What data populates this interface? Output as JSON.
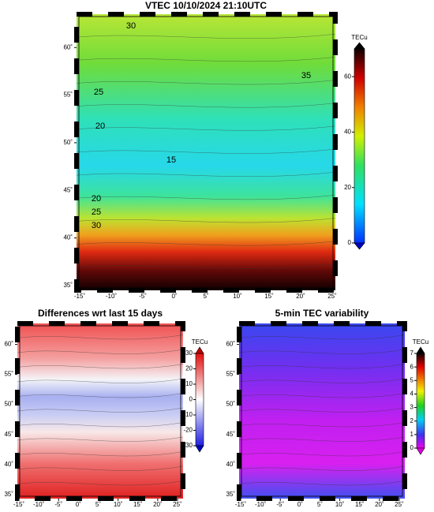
{
  "maps": [
    {
      "title": "VTEC 10/10/2024 21:10UTC",
      "xlim": [
        -15.5,
        25.5
      ],
      "ylim": [
        34.5,
        63.5
      ],
      "xticks": [
        {
          "value": -15,
          "label": "-15˚"
        },
        {
          "value": -10,
          "label": "-10˚"
        },
        {
          "value": -5,
          "label": "-5˚"
        },
        {
          "value": 0,
          "label": "0˚"
        },
        {
          "value": 5,
          "label": "5˚"
        },
        {
          "value": 10,
          "label": "10˚"
        },
        {
          "value": 15,
          "label": "15˚"
        },
        {
          "value": 20,
          "label": "20˚"
        },
        {
          "value": 25,
          "label": "25˚"
        }
      ],
      "yticks": [
        {
          "value": 35,
          "label": "35˚"
        },
        {
          "value": 40,
          "label": "40˚"
        },
        {
          "value": 45,
          "label": "45˚"
        },
        {
          "value": 50,
          "label": "50˚"
        },
        {
          "value": 55,
          "label": "55˚"
        },
        {
          "value": 60,
          "label": "60˚"
        }
      ],
      "colorbar": {
        "label": "TECu",
        "lim": [
          0,
          70
        ],
        "ticks": [
          0,
          20,
          40,
          60
        ]
      },
      "contour_labels": [
        30,
        25,
        20,
        15,
        20,
        25,
        30,
        35
      ]
    },
    {
      "title": "Differences wrt last 15 days",
      "xlim": [
        -15.4,
        26.4
      ],
      "ylim": [
        34.3,
        63.5
      ],
      "xticks": [
        {
          "value": -15,
          "label": "-15˚"
        },
        {
          "value": -10,
          "label": "-10˚"
        },
        {
          "value": -5,
          "label": "-5˚"
        },
        {
          "value": 0,
          "label": "0˚"
        },
        {
          "value": 5,
          "label": "5˚"
        },
        {
          "value": 10,
          "label": "10˚"
        },
        {
          "value": 15,
          "label": "15˚"
        },
        {
          "value": 20,
          "label": "20˚"
        },
        {
          "value": 25,
          "label": "25˚"
        }
      ],
      "yticks": [
        {
          "value": 35,
          "label": "35˚"
        },
        {
          "value": 40,
          "label": "40˚"
        },
        {
          "value": 45,
          "label": "45˚"
        },
        {
          "value": 50,
          "label": "50˚"
        },
        {
          "value": 55,
          "label": "55˚"
        },
        {
          "value": 60,
          "label": "60˚"
        }
      ],
      "colorbar": {
        "label": "TECu",
        "lim": [
          -30,
          30
        ],
        "ticks": [
          30,
          20,
          10,
          0,
          -10,
          -20,
          -30
        ]
      }
    },
    {
      "title": "5-min TEC variability",
      "xlim": [
        -15.4,
        26.4
      ],
      "ylim": [
        34.3,
        63.5
      ],
      "xticks": [
        {
          "value": -15,
          "label": "-15˚"
        },
        {
          "value": -10,
          "label": "-10˚"
        },
        {
          "value": -5,
          "label": "-5˚"
        },
        {
          "value": 0,
          "label": "0˚"
        },
        {
          "value": 5,
          "label": "5˚"
        },
        {
          "value": 10,
          "label": "10˚"
        },
        {
          "value": 15,
          "label": "15˚"
        },
        {
          "value": 20,
          "label": "20˚"
        },
        {
          "value": 25,
          "label": "25˚"
        }
      ],
      "yticks": [
        {
          "value": 35,
          "label": "35˚"
        },
        {
          "value": 40,
          "label": "40˚"
        },
        {
          "value": 45,
          "label": "45˚"
        },
        {
          "value": 50,
          "label": "50˚"
        },
        {
          "value": 55,
          "label": "55˚"
        },
        {
          "value": 60,
          "label": "60˚"
        }
      ],
      "colorbar": {
        "label": "TECu",
        "lim": [
          0,
          7
        ],
        "ticks": [
          7,
          6,
          5,
          4,
          3,
          2,
          1,
          0
        ]
      }
    }
  ]
}
